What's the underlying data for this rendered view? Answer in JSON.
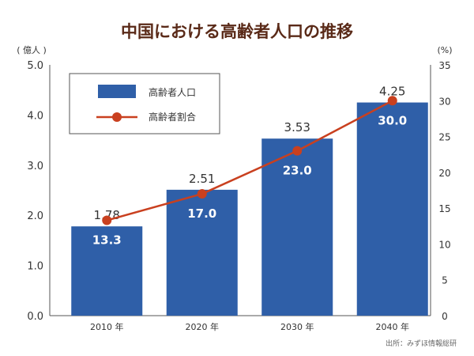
{
  "chart_data": {
    "type": "bar+line",
    "title": "中国における高齢者人口の推移",
    "categories": [
      "2010 年",
      "2020 年",
      "2030 年",
      "2040 年"
    ],
    "series": [
      {
        "name": "高齢者人口",
        "type": "bar",
        "axis": "left",
        "values": [
          1.78,
          2.51,
          3.53,
          4.25
        ],
        "color": "#2f5fa8"
      },
      {
        "name": "高齢者割合",
        "type": "line",
        "axis": "right",
        "values": [
          13.3,
          17.0,
          23.0,
          30.0
        ],
        "color": "#c9401f"
      }
    ],
    "left_axis": {
      "label": "( 億人 )",
      "ylim": [
        0,
        5
      ],
      "ticks": [
        "0.0",
        "1.0",
        "2.0",
        "3.0",
        "4.0",
        "5.0"
      ]
    },
    "right_axis": {
      "label": "(%)",
      "ylim": [
        0,
        35
      ],
      "ticks": [
        "0",
        "5",
        "10",
        "15",
        "20",
        "25",
        "30",
        "35"
      ]
    },
    "legend": "top-left",
    "grid": false,
    "source": "出所：みずほ情報総研"
  }
}
